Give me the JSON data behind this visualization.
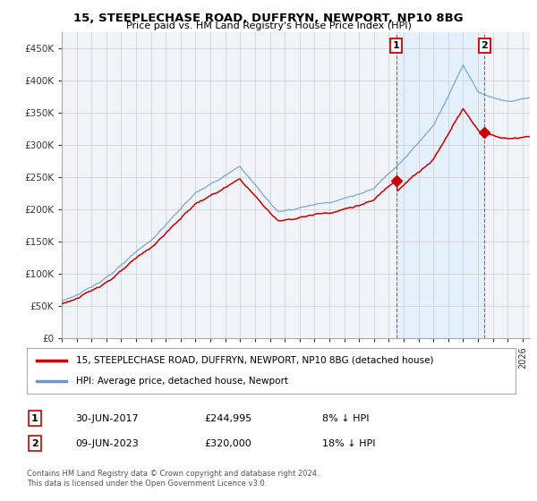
{
  "title": "15, STEEPLECHASE ROAD, DUFFRYN, NEWPORT, NP10 8BG",
  "subtitle": "Price paid vs. HM Land Registry's House Price Index (HPI)",
  "ylim": [
    0,
    475000
  ],
  "yticks": [
    0,
    50000,
    100000,
    150000,
    200000,
    250000,
    300000,
    350000,
    400000,
    450000
  ],
  "ytick_labels": [
    "£0",
    "£50K",
    "£100K",
    "£150K",
    "£200K",
    "£250K",
    "£300K",
    "£350K",
    "£400K",
    "£450K"
  ],
  "xlim_start": 1995.0,
  "xlim_end": 2026.5,
  "legend_label_red": "15, STEEPLECHASE ROAD, DUFFRYN, NEWPORT, NP10 8BG (detached house)",
  "legend_label_blue": "HPI: Average price, detached house, Newport",
  "sale1_date": "30-JUN-2017",
  "sale1_price": "£244,995",
  "sale1_pct": "8% ↓ HPI",
  "sale1_year": 2017.5,
  "sale1_value": 244995,
  "sale2_date": "09-JUN-2023",
  "sale2_price": "£320,000",
  "sale2_pct": "18% ↓ HPI",
  "sale2_year": 2023.44,
  "sale2_value": 320000,
  "footer1": "Contains HM Land Registry data © Crown copyright and database right 2024.",
  "footer2": "This data is licensed under the Open Government Licence v3.0.",
  "red_color": "#cc0000",
  "blue_color": "#6699cc",
  "shade_color": "#ddeeff",
  "grid_color": "#cccccc",
  "bg_color": "#ffffff",
  "plot_bg": "#f0f4f8"
}
